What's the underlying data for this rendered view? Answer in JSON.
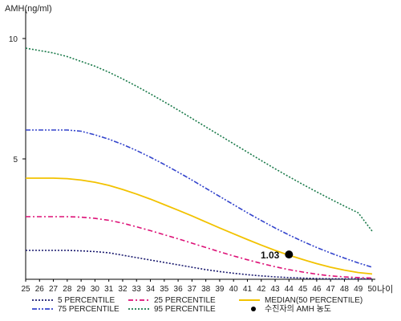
{
  "chart_data": {
    "type": "line",
    "title": "",
    "ylabel": "AMH(ng/ml)",
    "xlabel": "나이",
    "x": [
      25,
      26,
      27,
      28,
      29,
      30,
      31,
      32,
      33,
      34,
      35,
      36,
      37,
      38,
      39,
      40,
      41,
      42,
      43,
      44,
      45,
      46,
      47,
      48,
      49,
      50
    ],
    "xlim": [
      25,
      50
    ],
    "ylim": [
      0,
      11
    ],
    "yticks": [
      5,
      10
    ],
    "grid": false,
    "legend_position": "bottom",
    "series": [
      {
        "name": "5 PERCENTILE",
        "color": "#1a1a6e",
        "dash": "dotted",
        "values": [
          1.2,
          1.2,
          1.2,
          1.2,
          1.18,
          1.15,
          1.1,
          1.0,
          0.9,
          0.8,
          0.7,
          0.6,
          0.5,
          0.4,
          0.32,
          0.25,
          0.19,
          0.14,
          0.1,
          0.07,
          0.05,
          0.03,
          0.02,
          0.02,
          0.02,
          0.02
        ]
      },
      {
        "name": "25 PERCENTILE",
        "color": "#dd1177",
        "dash": "dashdot",
        "values": [
          2.6,
          2.6,
          2.6,
          2.6,
          2.58,
          2.53,
          2.45,
          2.33,
          2.18,
          2.02,
          1.85,
          1.68,
          1.5,
          1.32,
          1.14,
          0.97,
          0.81,
          0.66,
          0.52,
          0.4,
          0.3,
          0.21,
          0.14,
          0.1,
          0.07,
          0.05
        ]
      },
      {
        "name": "MEDIAN(50 PERCENTILE)",
        "color": "#f2c200",
        "dash": "solid",
        "values": [
          4.2,
          4.2,
          4.2,
          4.18,
          4.12,
          4.03,
          3.9,
          3.73,
          3.54,
          3.33,
          3.1,
          2.87,
          2.63,
          2.38,
          2.13,
          1.89,
          1.65,
          1.42,
          1.2,
          1.0,
          0.82,
          0.65,
          0.5,
          0.38,
          0.28,
          0.22
        ]
      },
      {
        "name": "75 PERCENTILE",
        "color": "#3344cc",
        "dash": "dashdotdot",
        "values": [
          6.2,
          6.2,
          6.2,
          6.2,
          6.15,
          6.0,
          5.82,
          5.6,
          5.35,
          5.07,
          4.77,
          4.45,
          4.12,
          3.78,
          3.44,
          3.1,
          2.76,
          2.44,
          2.13,
          1.84,
          1.57,
          1.32,
          1.09,
          0.88,
          0.68,
          0.5
        ]
      },
      {
        "name": "95 PERCENTILE",
        "color": "#1a7a4a",
        "dash": "dotted",
        "values": [
          9.6,
          9.5,
          9.4,
          9.25,
          9.05,
          8.85,
          8.6,
          8.32,
          8.02,
          7.7,
          7.37,
          7.03,
          6.68,
          6.33,
          5.98,
          5.63,
          5.28,
          4.93,
          4.59,
          4.26,
          3.94,
          3.63,
          3.33,
          3.04,
          2.76,
          2.0
        ]
      }
    ],
    "highlight_point": {
      "name": "수진자의 AMH 농도",
      "x": 44,
      "y": 1.03,
      "label": "1.03",
      "color": "#000000"
    }
  },
  "legend": {
    "columns": [
      [
        "5 PERCENTILE",
        "75 PERCENTILE"
      ],
      [
        "25 PERCENTILE",
        "95 PERCENTILE"
      ],
      [
        "MEDIAN(50 PERCENTILE)",
        "수진자의 AMH 농도"
      ]
    ]
  }
}
